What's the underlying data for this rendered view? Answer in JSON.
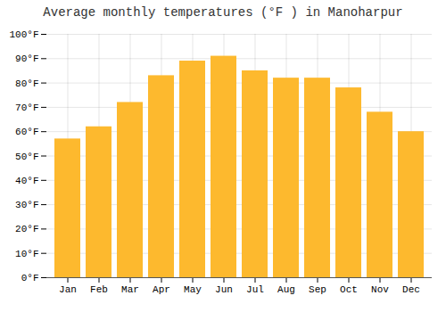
{
  "chart_data": {
    "type": "bar",
    "title": "Average monthly temperatures (°F ) in Manoharpur",
    "categories": [
      "Jan",
      "Feb",
      "Mar",
      "Apr",
      "May",
      "Jun",
      "Jul",
      "Aug",
      "Sep",
      "Oct",
      "Nov",
      "Dec"
    ],
    "values": [
      57,
      62,
      72,
      83,
      89,
      91,
      85,
      82,
      82,
      78,
      68,
      60
    ],
    "color": "#FDB92E",
    "ylim": [
      0,
      100
    ],
    "yticks": [
      {
        "value": 0,
        "label": "0°F"
      },
      {
        "value": 10,
        "label": "10°F"
      },
      {
        "value": 20,
        "label": "20°F"
      },
      {
        "value": 30,
        "label": "30°F"
      },
      {
        "value": 40,
        "label": "40°F"
      },
      {
        "value": 50,
        "label": "50°F"
      },
      {
        "value": 60,
        "label": "60°F"
      },
      {
        "value": 70,
        "label": "70°F"
      },
      {
        "value": 80,
        "label": "80°F"
      },
      {
        "value": 90,
        "label": "90°F"
      },
      {
        "value": 100,
        "label": "100°F"
      }
    ],
    "grid": true
  }
}
